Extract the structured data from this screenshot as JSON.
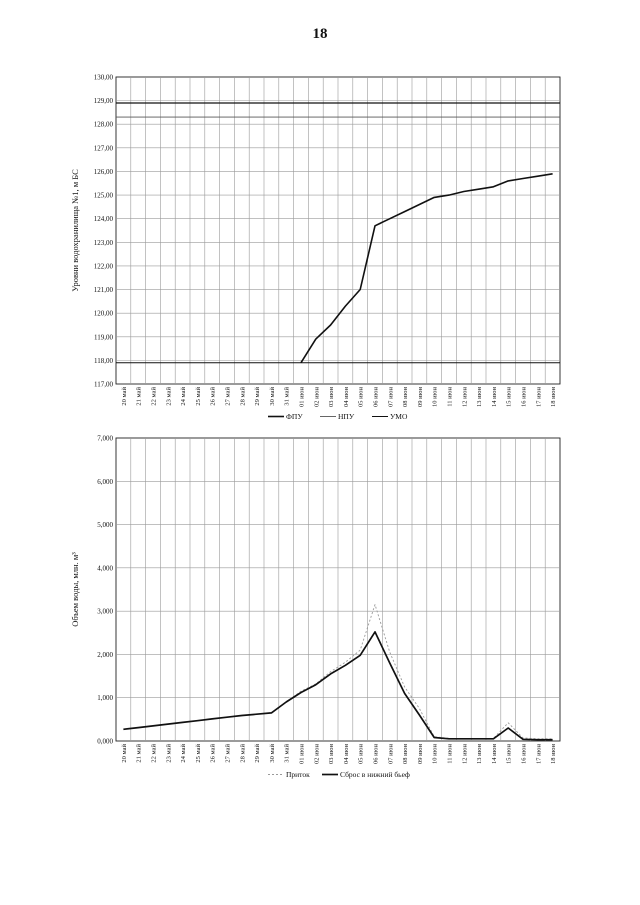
{
  "page_number": "18",
  "chart_data": [
    {
      "type": "line",
      "ylabel": "Уровни водохранилища №1, м БС",
      "ylim": [
        117,
        130
      ],
      "yticks": [
        "130,00",
        "129,00",
        "128,00",
        "127,00",
        "126,00",
        "125,00",
        "124,00",
        "123,00",
        "122,00",
        "121,00",
        "120,00",
        "119,00",
        "118,00",
        "117,00"
      ],
      "categories": [
        "20 май",
        "21 май",
        "22 май",
        "23 май",
        "24 май",
        "25 май",
        "26 май",
        "27 май",
        "28 май",
        "29 май",
        "30 май",
        "31 май",
        "01 июн",
        "02 июн",
        "03 июн",
        "04 июн",
        "05 июн",
        "06 июн",
        "07 июн",
        "08 июн",
        "09 июн",
        "10 июн",
        "11 июн",
        "12 июн",
        "13 июн",
        "14 июн",
        "15 июн",
        "16 июн",
        "17 июн",
        "18 июн"
      ],
      "grid": true,
      "legend_position": "bottom",
      "series": [
        {
          "name": "ФПУ",
          "color": "#111111",
          "width": 1.6,
          "values": [
            null,
            null,
            null,
            null,
            null,
            null,
            null,
            null,
            null,
            null,
            null,
            null,
            117.9,
            118.9,
            119.5,
            120.3,
            121.0,
            123.7,
            124.0,
            124.3,
            124.6,
            124.9,
            125.0,
            125.15,
            125.25,
            125.35,
            125.6,
            125.7,
            125.8,
            125.9
          ]
        },
        {
          "name": "НПУ",
          "color": "#555555",
          "width": 0.9,
          "values": [
            128.3,
            128.3,
            128.3,
            128.3,
            128.3,
            128.3,
            128.3,
            128.3,
            128.3,
            128.3,
            128.3,
            128.3,
            128.3,
            128.3,
            128.3,
            128.3,
            128.3,
            128.3,
            128.3,
            128.3,
            128.3,
            128.3,
            128.3,
            128.3,
            128.3,
            128.3,
            128.3,
            128.3,
            128.3,
            128.3
          ]
        },
        {
          "name": "УМО",
          "color": "#111111",
          "width": 1.0,
          "values": [
            117.9,
            117.9,
            117.9,
            117.9,
            117.9,
            117.9,
            117.9,
            117.9,
            117.9,
            117.9,
            117.9,
            117.9,
            117.9,
            117.9,
            117.9,
            117.9,
            117.9,
            117.9,
            117.9,
            117.9,
            117.9,
            117.9,
            117.9,
            117.9,
            117.9,
            117.9,
            117.9,
            117.9,
            117.9,
            117.9
          ]
        },
        {
          "name": "",
          "color": "#111111",
          "width": 1.2,
          "values": [
            128.9,
            128.9,
            128.9,
            128.9,
            128.9,
            128.9,
            128.9,
            128.9,
            128.9,
            128.9,
            128.9,
            128.9,
            128.9,
            128.9,
            128.9,
            128.9,
            128.9,
            128.9,
            128.9,
            128.9,
            128.9,
            128.9,
            128.9,
            128.9,
            128.9,
            128.9,
            128.9,
            128.9,
            128.9,
            128.9
          ]
        }
      ]
    },
    {
      "type": "line",
      "ylabel": "Объем воды, млн. м³",
      "ylim": [
        0,
        7
      ],
      "yticks": [
        "7,000",
        "6,000",
        "5,000",
        "4,000",
        "3,000",
        "2,000",
        "1,000",
        "0,000"
      ],
      "categories": [
        "20 май",
        "21 май",
        "22 май",
        "23 май",
        "24 май",
        "25 май",
        "26 май",
        "27 май",
        "28 май",
        "29 май",
        "30 май",
        "31 май",
        "01 июн",
        "02 июн",
        "03 июн",
        "04 июн",
        "05 июн",
        "06 июн",
        "07 июн",
        "08 июн",
        "09 июн",
        "10 июн",
        "11 июн",
        "12 июн",
        "13 июн",
        "14 июн",
        "15 июн",
        "16 июн",
        "17 июн",
        "18 июн"
      ],
      "grid": true,
      "legend_position": "bottom",
      "series": [
        {
          "name": "Приток",
          "color": "#9a9a9a",
          "width": 0.9,
          "dash": "2,2",
          "values": [
            0.27,
            0.31,
            0.35,
            0.39,
            0.43,
            0.47,
            0.51,
            0.55,
            0.59,
            0.62,
            0.65,
            0.9,
            1.15,
            1.32,
            1.6,
            1.82,
            2.1,
            3.15,
            2.05,
            1.25,
            0.75,
            0.1,
            0.06,
            0.06,
            0.06,
            0.06,
            0.42,
            0.07,
            0.05,
            0.05
          ]
        },
        {
          "name": "Сброс в нижний бьеф",
          "color": "#111111",
          "width": 1.7,
          "values": [
            0.27,
            0.31,
            0.35,
            0.39,
            0.43,
            0.47,
            0.51,
            0.55,
            0.59,
            0.62,
            0.65,
            0.9,
            1.12,
            1.3,
            1.55,
            1.75,
            1.98,
            2.52,
            1.8,
            1.1,
            0.6,
            0.08,
            0.05,
            0.05,
            0.05,
            0.05,
            0.3,
            0.04,
            0.03,
            0.03
          ]
        }
      ]
    }
  ]
}
